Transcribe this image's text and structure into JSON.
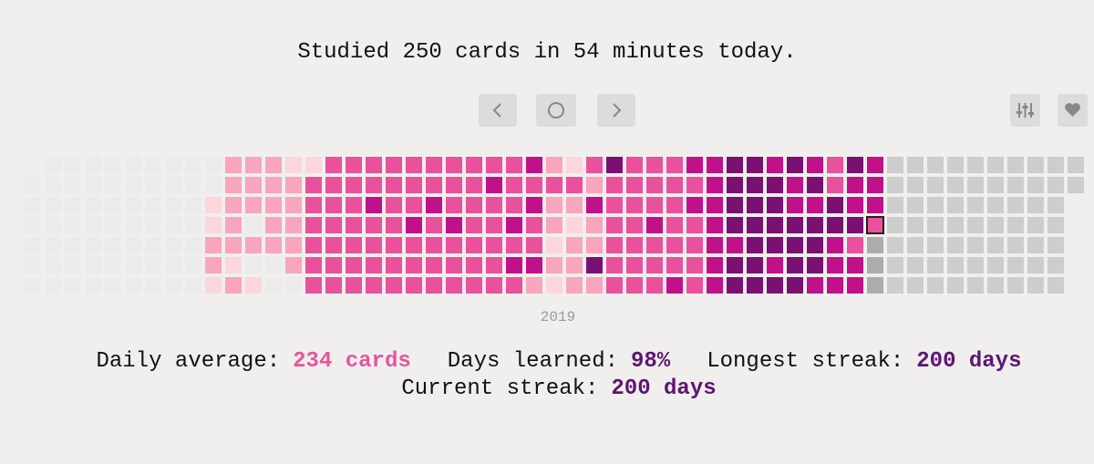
{
  "header": {
    "title": "Studied 250 cards in 54 minutes today."
  },
  "heatmap": {
    "year": "2019",
    "palette": [
      "#ebebeb",
      "#fcd6db",
      "#f9a5bd",
      "#e9519d",
      "#c0118a",
      "#7a1172",
      "#cdcdcd",
      "#acacac",
      "#e9519d"
    ],
    "levels": [
      [
        null,
        0,
        0,
        0,
        0,
        0,
        0
      ],
      [
        0,
        0,
        0,
        0,
        0,
        0,
        0
      ],
      [
        0,
        0,
        0,
        0,
        0,
        0,
        0
      ],
      [
        0,
        0,
        0,
        0,
        0,
        0,
        0
      ],
      [
        0,
        0,
        0,
        0,
        0,
        0,
        0
      ],
      [
        0,
        0,
        0,
        0,
        0,
        0,
        0
      ],
      [
        0,
        0,
        0,
        0,
        0,
        0,
        0
      ],
      [
        0,
        0,
        0,
        0,
        0,
        0,
        0
      ],
      [
        0,
        0,
        0,
        0,
        0,
        0,
        0
      ],
      [
        0,
        0,
        1,
        1,
        2,
        2,
        1
      ],
      [
        2,
        2,
        2,
        2,
        2,
        1,
        2
      ],
      [
        2,
        2,
        2,
        0,
        2,
        0,
        1
      ],
      [
        2,
        2,
        2,
        2,
        2,
        0,
        0
      ],
      [
        1,
        2,
        2,
        2,
        2,
        2,
        0
      ],
      [
        1,
        3,
        3,
        3,
        3,
        3,
        3
      ],
      [
        3,
        3,
        3,
        3,
        3,
        3,
        3
      ],
      [
        3,
        3,
        3,
        3,
        3,
        3,
        3
      ],
      [
        3,
        3,
        4,
        3,
        3,
        3,
        3
      ],
      [
        3,
        3,
        3,
        3,
        3,
        3,
        3
      ],
      [
        3,
        3,
        3,
        4,
        3,
        3,
        3
      ],
      [
        3,
        3,
        4,
        3,
        3,
        3,
        3
      ],
      [
        3,
        3,
        3,
        4,
        3,
        3,
        3
      ],
      [
        3,
        3,
        3,
        3,
        3,
        3,
        3
      ],
      [
        3,
        4,
        3,
        3,
        3,
        3,
        3
      ],
      [
        3,
        3,
        3,
        4,
        3,
        4,
        3
      ],
      [
        4,
        3,
        4,
        3,
        3,
        4,
        2
      ],
      [
        2,
        3,
        2,
        2,
        1,
        2,
        1
      ],
      [
        1,
        3,
        2,
        1,
        2,
        2,
        2
      ],
      [
        3,
        2,
        4,
        2,
        2,
        5,
        2
      ],
      [
        5,
        3,
        3,
        3,
        3,
        3,
        3
      ],
      [
        3,
        3,
        3,
        3,
        3,
        3,
        3
      ],
      [
        3,
        3,
        3,
        4,
        3,
        3,
        3
      ],
      [
        3,
        3,
        3,
        3,
        3,
        3,
        4
      ],
      [
        4,
        3,
        4,
        3,
        3,
        3,
        3
      ],
      [
        4,
        4,
        4,
        4,
        4,
        4,
        4
      ],
      [
        5,
        5,
        5,
        5,
        4,
        5,
        5
      ],
      [
        5,
        5,
        5,
        5,
        5,
        5,
        5
      ],
      [
        4,
        5,
        5,
        5,
        5,
        4,
        5
      ],
      [
        5,
        4,
        4,
        5,
        5,
        5,
        5
      ],
      [
        4,
        5,
        4,
        5,
        5,
        5,
        4
      ],
      [
        3,
        3,
        5,
        5,
        4,
        4,
        4
      ],
      [
        5,
        4,
        4,
        5,
        3,
        4,
        4
      ],
      [
        4,
        4,
        4,
        8,
        7,
        7,
        7
      ],
      [
        6,
        6,
        6,
        6,
        6,
        6,
        6
      ],
      [
        6,
        6,
        6,
        6,
        6,
        6,
        6
      ],
      [
        6,
        6,
        6,
        6,
        6,
        6,
        6
      ],
      [
        6,
        6,
        6,
        6,
        6,
        6,
        6
      ],
      [
        6,
        6,
        6,
        6,
        6,
        6,
        6
      ],
      [
        6,
        6,
        6,
        6,
        6,
        6,
        6
      ],
      [
        6,
        6,
        6,
        6,
        6,
        6,
        6
      ],
      [
        6,
        6,
        6,
        6,
        6,
        6,
        6
      ],
      [
        6,
        6,
        6,
        6,
        6,
        6,
        6
      ],
      [
        6,
        6,
        null,
        null,
        null,
        null,
        null
      ]
    ]
  },
  "stats": [
    {
      "label": "Daily average:",
      "value": "234 cards",
      "color": "#e8549e"
    },
    {
      "label": "Days learned:",
      "value": "98%",
      "color": "#5e1572"
    },
    {
      "label": "Longest streak:",
      "value": "200 days",
      "color": "#5e1572"
    },
    {
      "label": "Current streak:",
      "value": "200 days",
      "color": "#5e1572"
    }
  ]
}
